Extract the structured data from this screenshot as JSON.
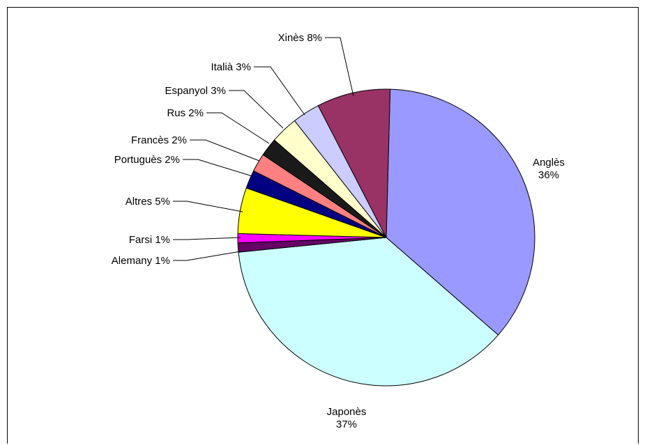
{
  "chart_data": {
    "type": "pie",
    "title": "",
    "slices": [
      {
        "label": "Anglès",
        "value": 36,
        "display": "36%",
        "color": "#9999ff"
      },
      {
        "label": "Japonès",
        "value": 37,
        "display": "37%",
        "color": "#ccffff"
      },
      {
        "label": "Alemany",
        "value": 1,
        "display": "1%",
        "color": "#660066"
      },
      {
        "label": "Farsi",
        "value": 1,
        "display": "1%",
        "color": "#ff00ff"
      },
      {
        "label": "Altres",
        "value": 5,
        "display": "5%",
        "color": "#ffff00"
      },
      {
        "label": "Portuguès",
        "value": 2,
        "display": "2%",
        "color": "#000080"
      },
      {
        "label": "Francès",
        "value": 2,
        "display": "2%",
        "color": "#ff8080"
      },
      {
        "label": "Rus",
        "value": 2,
        "display": "2%",
        "color": "#1a1a1a"
      },
      {
        "label": "Espanyol",
        "value": 3,
        "display": "3%",
        "color": "#ffffcc"
      },
      {
        "label": "Italià",
        "value": 3,
        "display": "3%",
        "color": "#ccccff"
      },
      {
        "label": "Xinès",
        "value": 8,
        "display": "8%",
        "color": "#993366"
      }
    ],
    "legend": "none"
  }
}
